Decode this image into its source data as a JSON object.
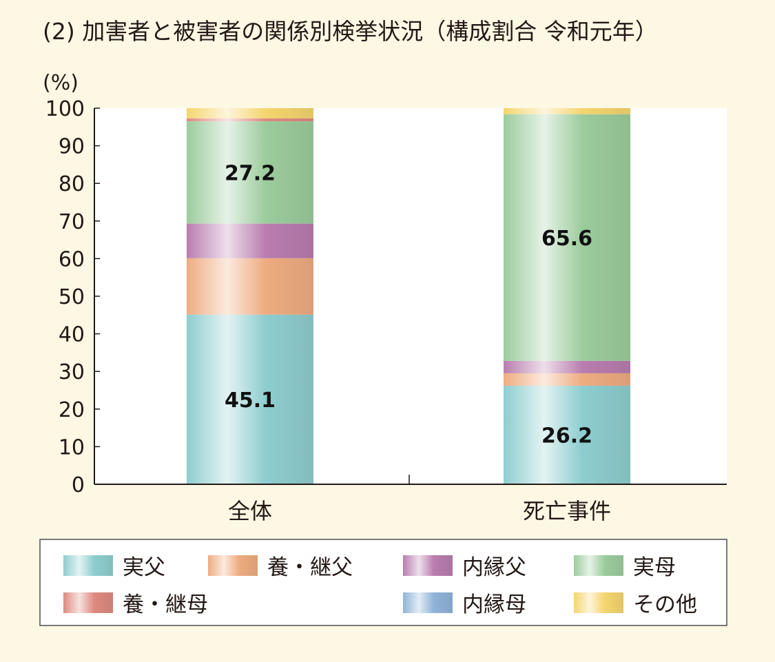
{
  "chart_data": {
    "type": "bar",
    "stacked": true,
    "title": "(2) 加害者と被害者の関係別検挙状況（構成割合 令和元年）",
    "unit_label": "(%)",
    "xlabel": "",
    "ylabel": "",
    "ylim": [
      0,
      100
    ],
    "y_ticks": [
      "0",
      "10",
      "20",
      "30",
      "40",
      "50",
      "60",
      "70",
      "80",
      "90",
      "100"
    ],
    "categories": [
      "全体",
      "死亡事件"
    ],
    "series": [
      {
        "name": "実父",
        "values": [
          45.1,
          26.2
        ],
        "color": "#8ecdcf",
        "labels": [
          "45.1",
          "26.2"
        ]
      },
      {
        "name": "養・継父",
        "values": [
          15.0,
          3.3
        ],
        "color": "#eeac80",
        "labels": [
          "",
          ""
        ]
      },
      {
        "name": "内縁父",
        "values": [
          9.2,
          3.3
        ],
        "color": "#b97daf",
        "labels": [
          "",
          ""
        ]
      },
      {
        "name": "実母",
        "values": [
          27.2,
          65.6
        ],
        "color": "#9ccc9d",
        "labels": [
          "27.2",
          "65.6"
        ]
      },
      {
        "name": "養・継母",
        "values": [
          0.8,
          0.0
        ],
        "color": "#dd8a80",
        "labels": [
          "",
          ""
        ]
      },
      {
        "name": "内縁母",
        "values": [
          0.0,
          0.0
        ],
        "color": "#8fb3d8",
        "labels": [
          "",
          ""
        ]
      },
      {
        "name": "その他",
        "values": [
          2.7,
          1.6
        ],
        "color": "#f5d56e",
        "labels": [
          "",
          ""
        ]
      }
    ],
    "legend_position": "bottom",
    "grid": false
  }
}
